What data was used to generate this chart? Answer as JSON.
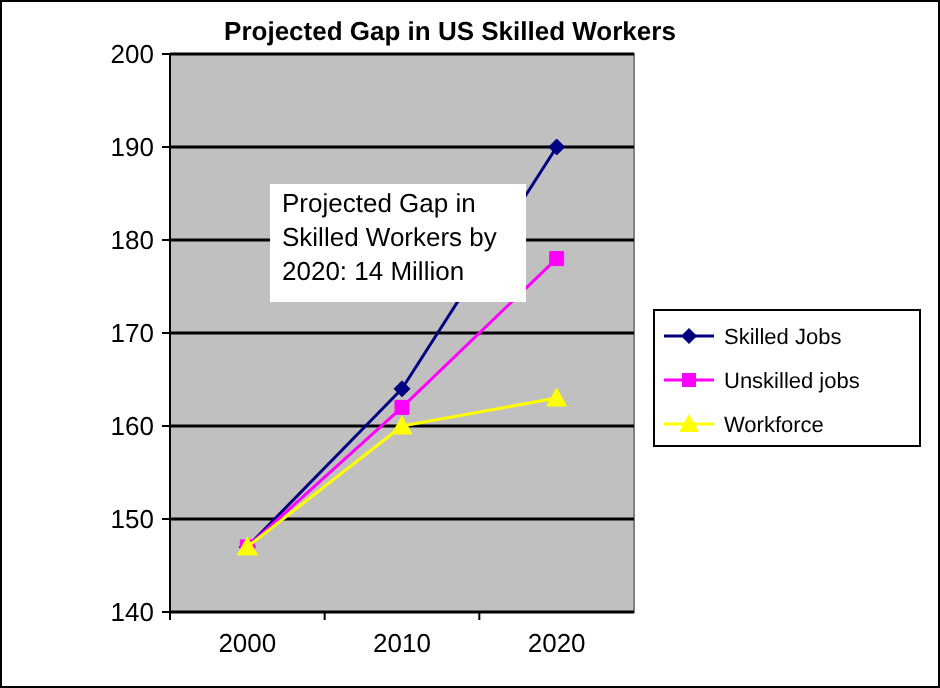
{
  "chart_data": {
    "type": "line",
    "title": "Projected Gap in US Skilled Workers",
    "categories": [
      "2000",
      "2010",
      "2020"
    ],
    "series": [
      {
        "name": "Skilled Jobs",
        "color": "#000080",
        "marker": "diamond",
        "values": [
          147,
          164,
          190
        ]
      },
      {
        "name": "Unskilled jobs",
        "color": "#ff00ff",
        "marker": "square",
        "values": [
          147,
          162,
          178
        ]
      },
      {
        "name": "Workforce",
        "color": "#ffff00",
        "marker": "triangle",
        "values": [
          147,
          160,
          163
        ]
      }
    ],
    "ylim": [
      140,
      200
    ],
    "yticks": [
      140,
      150,
      160,
      170,
      180,
      190,
      200
    ],
    "grid": "y",
    "legend": "right",
    "line_style": "solid",
    "annotations": [
      "Projected Gap in Skilled Workers by 2020: 14 Million"
    ]
  }
}
